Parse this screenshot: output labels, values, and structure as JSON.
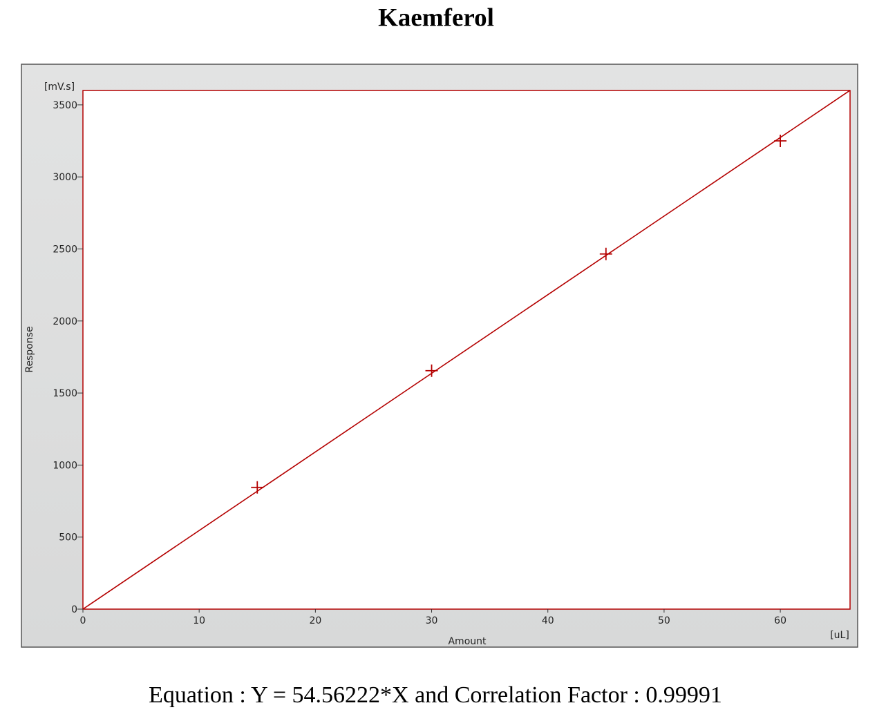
{
  "chart_data": {
    "type": "scatter",
    "title": "Kaemferol",
    "x_label": "Amount",
    "y_label": "Response",
    "x_unit": "[uL]",
    "y_unit": "[mV.s]",
    "annotation": "Equation : Y = 54.56222*X and Correlation Factor : 0.99991",
    "xlim": [
      0,
      66
    ],
    "ylim": [
      0,
      3600
    ],
    "xticks": [
      0,
      10,
      20,
      30,
      40,
      50,
      60
    ],
    "yticks": [
      0,
      500,
      1000,
      1500,
      2000,
      2500,
      3000,
      3500
    ],
    "series": [
      {
        "type": "line",
        "color": "#b40000",
        "x": [
          0,
          66
        ],
        "values": [
          0,
          3601
        ]
      },
      {
        "type": "scatter",
        "color": "#b40000",
        "x": [
          15,
          30,
          45,
          60
        ],
        "values": [
          845,
          1655,
          2465,
          3250
        ]
      }
    ]
  }
}
